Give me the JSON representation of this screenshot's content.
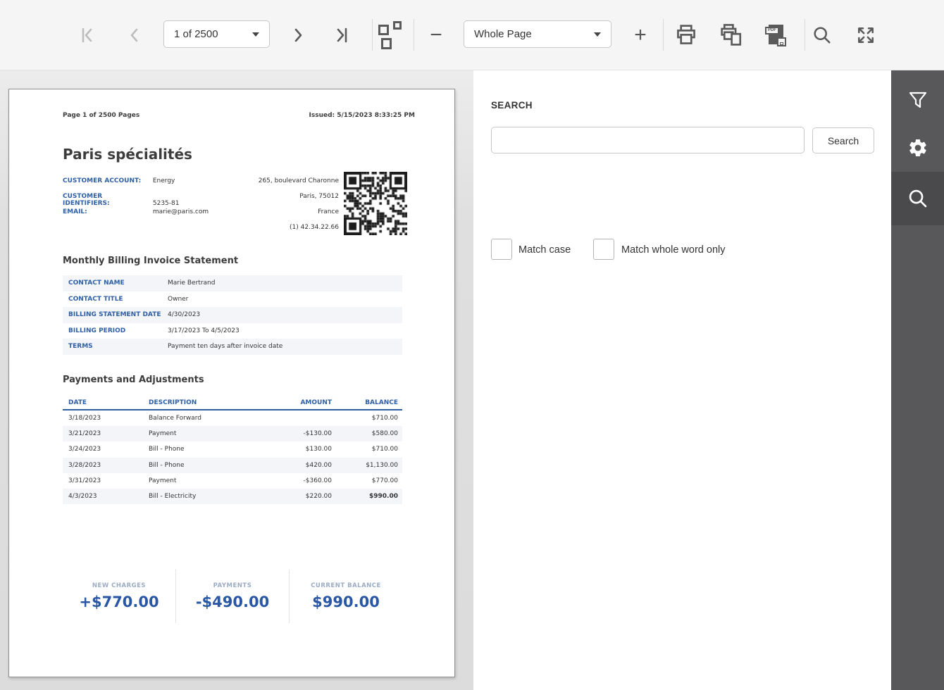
{
  "colors": {
    "accent_blue": "#2e5fa5",
    "summary_value": "#2a57a5",
    "summary_label": "#9cabc4",
    "toolbar_bg": "#f5f5f5",
    "viewer_bg": "#dcdcdc",
    "row_stripe": "#f3f5f9",
    "sidebar_bg": "#58585a",
    "sidebar_active_bg": "#4a4a4c",
    "icon_gray": "#5a5a5a",
    "icon_disabled": "#bdbdbd"
  },
  "toolbar": {
    "page_select": {
      "value": "1 of 2500"
    },
    "zoom_select": {
      "value": "Whole Page"
    },
    "pdf_badge": "PDF"
  },
  "document": {
    "page_meta": "Page 1 of 2500 Pages",
    "issued": "Issued: 5/15/2023 8:33:25 PM",
    "title": "Paris spécialités",
    "customer_fields": [
      {
        "label": "CUSTOMER ACCOUNT:",
        "value": "Energy"
      },
      {
        "label": "CUSTOMER IDENTIFIERS:",
        "value": "5235-81"
      },
      {
        "label": "EMAIL:",
        "value": "marie@paris.com"
      }
    ],
    "address_lines": [
      "265, boulevard Charonne",
      "Paris,  75012",
      "France",
      "(1) 42.34.22.66"
    ],
    "statement": {
      "heading": "Monthly Billing Invoice Statement",
      "fields": [
        {
          "label": "CONTACT NAME",
          "value": "Marie Bertrand"
        },
        {
          "label": "CONTACT TITLE",
          "value": "Owner"
        },
        {
          "label": "BILLING STATEMENT DATE",
          "value": "4/30/2023"
        },
        {
          "label": "BILLING PERIOD",
          "value": "3/17/2023 To 4/5/2023"
        },
        {
          "label": "TERMS",
          "value": "Payment ten days after invoice date"
        }
      ]
    },
    "payments": {
      "heading": "Payments and Adjustments",
      "columns": [
        "DATE",
        "DESCRIPTION",
        "AMOUNT",
        "BALANCE"
      ],
      "rows": [
        [
          "3/18/2023",
          "Balance Forward",
          "",
          "$710.00"
        ],
        [
          "3/21/2023",
          "Payment",
          "-$130.00",
          "$580.00"
        ],
        [
          "3/24/2023",
          "Bill - Phone",
          "$130.00",
          "$710.00"
        ],
        [
          "3/28/2023",
          "Bill - Phone",
          "$420.00",
          "$1,130.00"
        ],
        [
          "3/31/2023",
          "Payment",
          "-$360.00",
          "$770.00"
        ],
        [
          "4/3/2023",
          "Bill - Electricity",
          "$220.00",
          "$990.00"
        ]
      ]
    },
    "summary": [
      {
        "label": "NEW CHARGES",
        "value": "+$770.00"
      },
      {
        "label": "PAYMENTS",
        "value": "-$490.00"
      },
      {
        "label": "CURRENT BALANCE",
        "value": "$990.00"
      }
    ]
  },
  "search_panel": {
    "heading": "SEARCH",
    "input_value": "",
    "button": "Search",
    "options": [
      {
        "label": "Match case"
      },
      {
        "label": "Match whole word only"
      }
    ]
  }
}
